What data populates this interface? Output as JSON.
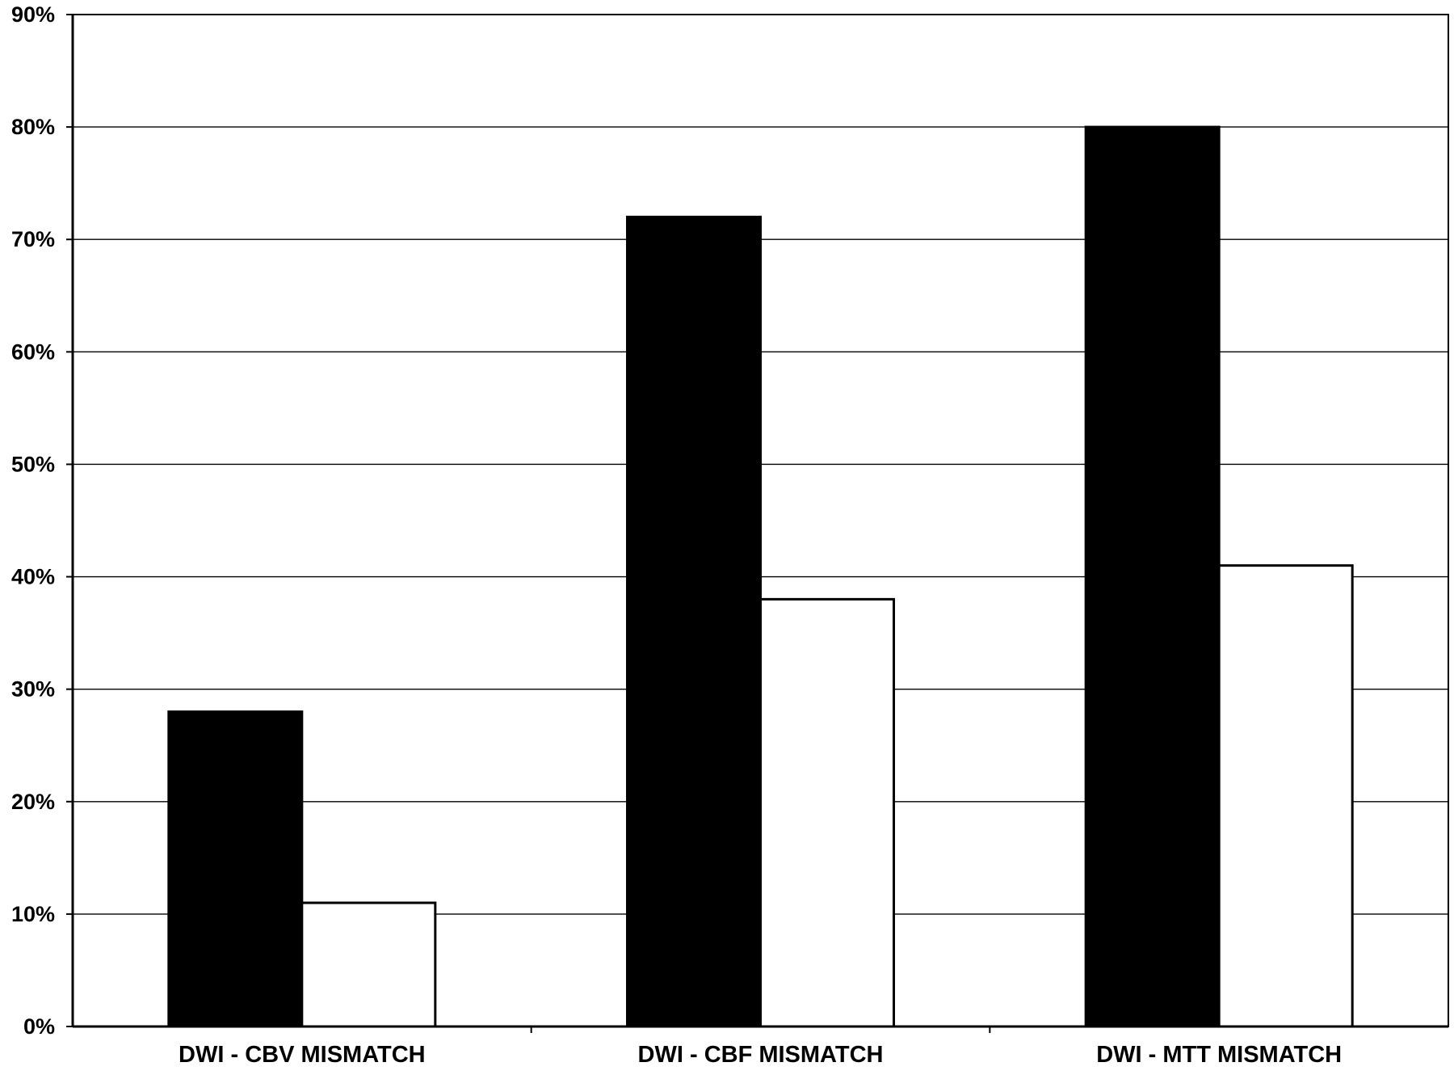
{
  "chart_data": {
    "type": "bar",
    "categories": [
      "DWI - CBV MISMATCH",
      "DWI - CBF MISMATCH",
      "DWI - MTT MISMATCH"
    ],
    "series": [
      {
        "values": [
          28,
          72,
          80
        ],
        "color": "#000000"
      },
      {
        "values": [
          11,
          38,
          41
        ],
        "color": "#ffffff"
      }
    ],
    "y_ticks": [
      "0%",
      "10%",
      "20%",
      "30%",
      "40%",
      "50%",
      "60%",
      "70%",
      "80%",
      "90%"
    ],
    "ylim": [
      0,
      90
    ],
    "y_tick_step": 10,
    "grid": true,
    "legend": "none",
    "title": "",
    "xlabel": "",
    "ylabel": ""
  }
}
